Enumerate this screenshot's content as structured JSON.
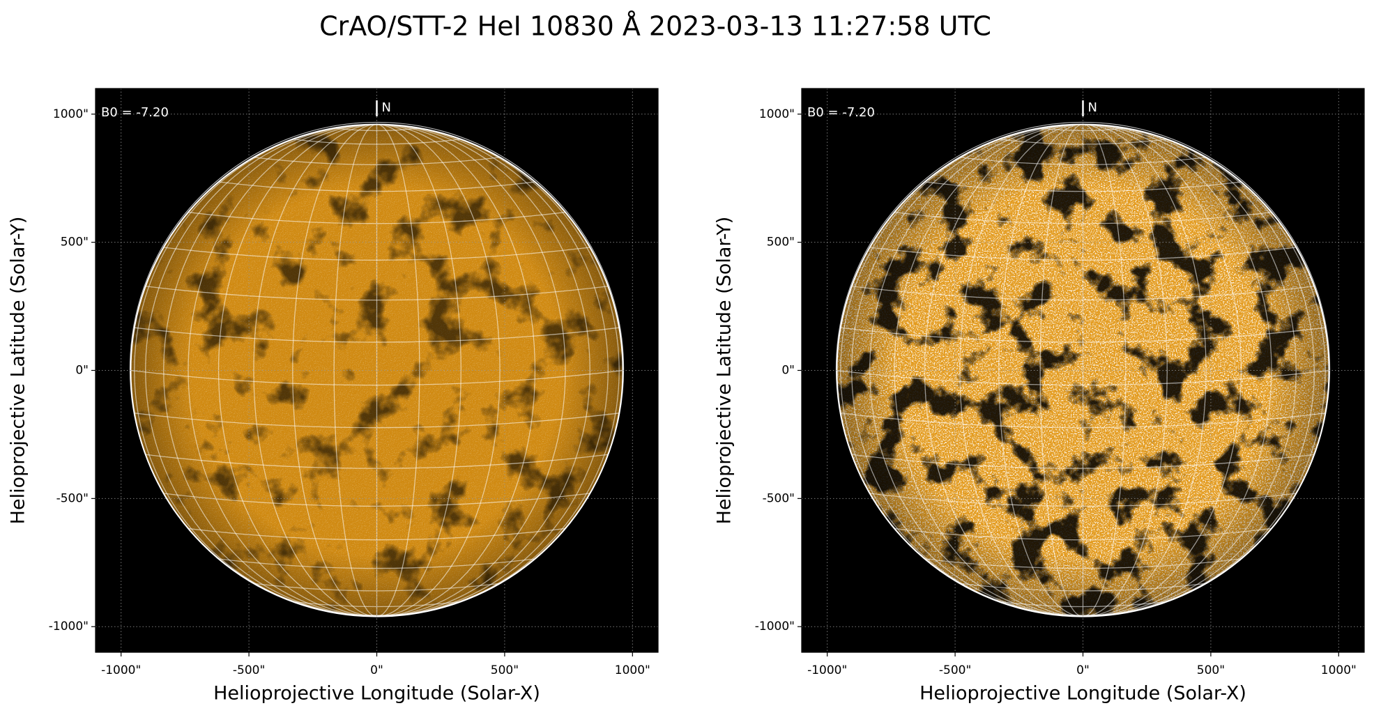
{
  "title": "CrAO/STT-2 HeI 10830 Å 2023-03-13 11:27:58 UTC",
  "chart_data": [
    {
      "type": "image",
      "x_label": "Helioprojective Longitude (Solar-X)",
      "y_label": "Helioprojective Latitude (Solar-Y)",
      "annotations": [
        "B0 = -7.20",
        "N"
      ],
      "color": "#d08a12",
      "xlim": [
        -1100,
        1100
      ],
      "ylim": [
        -1100,
        1100
      ],
      "xticks": [
        {
          "value": -1000,
          "label": "-1000\""
        },
        {
          "value": -500,
          "label": "-500\""
        },
        {
          "value": 0,
          "label": "0\""
        },
        {
          "value": 500,
          "label": "500\""
        },
        {
          "value": 1000,
          "label": "1000\""
        }
      ],
      "yticks": [
        {
          "value": -1000,
          "label": "-1000\""
        },
        {
          "value": -500,
          "label": "-500\""
        },
        {
          "value": 0,
          "label": "0\""
        },
        {
          "value": 500,
          "label": "500\""
        },
        {
          "value": 1000,
          "label": "1000\""
        }
      ],
      "grid": true
    },
    {
      "type": "image",
      "x_label": "Helioprojective Longitude (Solar-X)",
      "y_label": "Helioprojective Latitude (Solar-Y)",
      "annotations": [
        "B0 = -7.20",
        "N"
      ],
      "color": "#e39a1c",
      "xlim": [
        -1100,
        1100
      ],
      "ylim": [
        -1100,
        1100
      ],
      "xticks": [
        {
          "value": -1000,
          "label": "-1000\""
        },
        {
          "value": -500,
          "label": "-500\""
        },
        {
          "value": 0,
          "label": "0\""
        },
        {
          "value": 500,
          "label": "500\""
        },
        {
          "value": 1000,
          "label": "1000\""
        }
      ],
      "yticks": [
        {
          "value": -1000,
          "label": "-1000\""
        },
        {
          "value": -500,
          "label": "-500\""
        },
        {
          "value": 0,
          "label": "0\""
        },
        {
          "value": 500,
          "label": "500\""
        },
        {
          "value": 1000,
          "label": "1000\""
        }
      ],
      "grid": true
    }
  ]
}
